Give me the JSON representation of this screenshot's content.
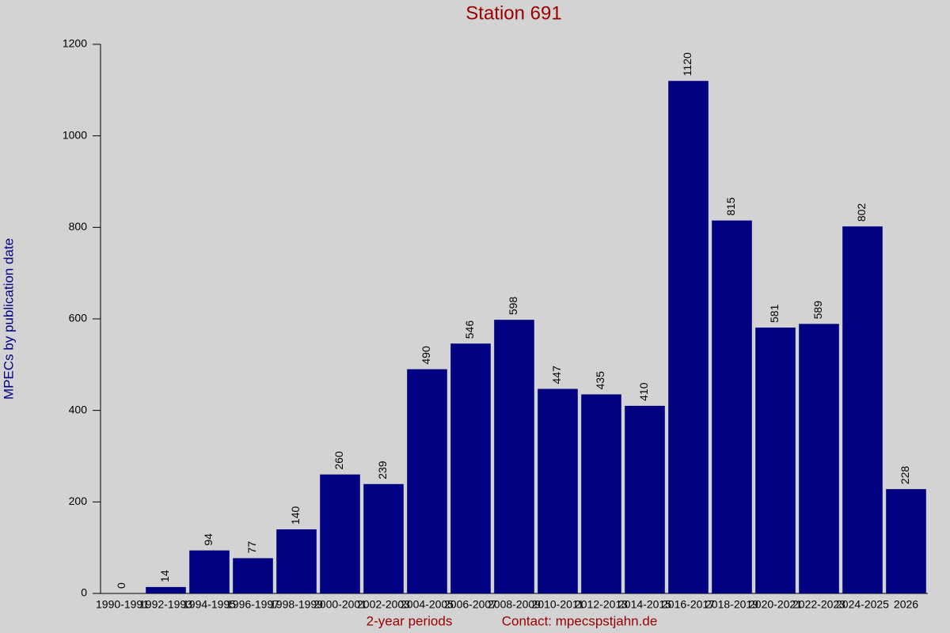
{
  "chart_data": {
    "type": "bar",
    "title": "Station 691",
    "y_label": "MPECs by publication date",
    "x_label": "2-year periods",
    "contact": "Contact: mpecspstjahn.de",
    "categories": [
      "1990-1991",
      "1992-1993",
      "1994-1995",
      "1996-1997",
      "1998-1999",
      "2000-2001",
      "2002-2003",
      "2004-2005",
      "2006-2007",
      "2008-2009",
      "2010-2011",
      "2012-2013",
      "2014-2015",
      "2016-2017",
      "2018-2019",
      "2020-2021",
      "2022-2023",
      "2024-2025",
      "2026"
    ],
    "values": [
      0,
      14,
      94,
      77,
      140,
      260,
      239,
      490,
      546,
      598,
      447,
      435,
      410,
      1120,
      815,
      581,
      589,
      802,
      228
    ],
    "color": "#000080",
    "ylim": [
      0,
      1200
    ],
    "yticks": [
      0,
      200,
      400,
      600,
      800,
      1000,
      1200
    ]
  }
}
